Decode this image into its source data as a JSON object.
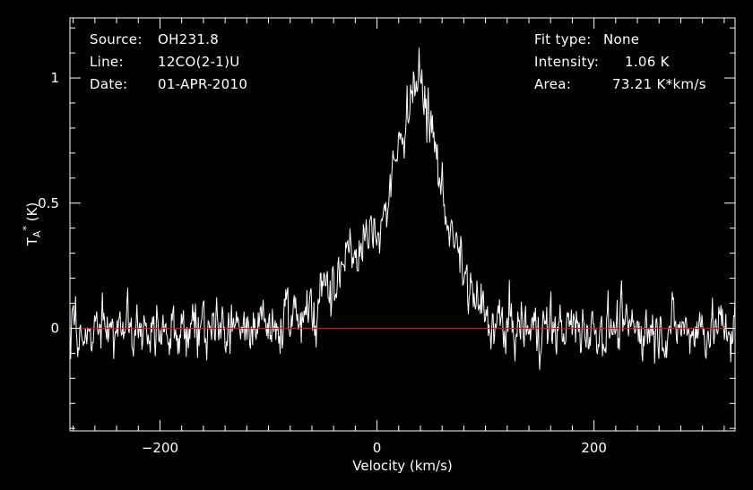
{
  "info_left": {
    "source_label": "Source:",
    "source_value": "OH231.8",
    "line_label": "Line:",
    "line_value": "12CO(2-1)U",
    "date_label": "Date:",
    "date_value": "01-APR-2010"
  },
  "info_right": {
    "fit_label": "Fit type:",
    "fit_value": "None",
    "intensity_label": "Intensity:",
    "intensity_value": "1.06 K",
    "area_label": "Area:",
    "area_value": "73.21 K*km/s"
  },
  "colors": {
    "background": "#000000",
    "foreground": "#ffffff",
    "baseline": "#ff0000"
  },
  "chart_data": {
    "type": "line",
    "title": "",
    "xlabel": "Velocity (km/s)",
    "ylabel": "T_A* (K)",
    "xlim": [
      -283,
      330
    ],
    "ylim": [
      -0.41,
      1.24
    ],
    "x_ticks": [
      -200,
      0,
      200
    ],
    "x_tick_labels": [
      "−200",
      "0",
      "200"
    ],
    "y_ticks": [
      0,
      0.5,
      1
    ],
    "y_tick_labels": [
      "0",
      "0.5",
      "1"
    ],
    "grid": false,
    "legend": "none",
    "baseline_y": 0,
    "series": [
      {
        "color": "#ffffff",
        "profile_points": [
          [
            -283,
            0.0
          ],
          [
            -100,
            0.0
          ],
          [
            -80,
            0.03
          ],
          [
            -60,
            0.09
          ],
          [
            -40,
            0.2
          ],
          [
            -20,
            0.3
          ],
          [
            0,
            0.4
          ],
          [
            10,
            0.5
          ],
          [
            20,
            0.72
          ],
          [
            30,
            0.92
          ],
          [
            35,
            1.0
          ],
          [
            42,
            0.95
          ],
          [
            50,
            0.8
          ],
          [
            60,
            0.55
          ],
          [
            70,
            0.35
          ],
          [
            80,
            0.22
          ],
          [
            90,
            0.1
          ],
          [
            105,
            0.02
          ],
          [
            120,
            0.0
          ],
          [
            330,
            0.0
          ]
        ],
        "noise_rms_K": 0.075,
        "channel_spacing_kms": 0.65
      }
    ]
  }
}
